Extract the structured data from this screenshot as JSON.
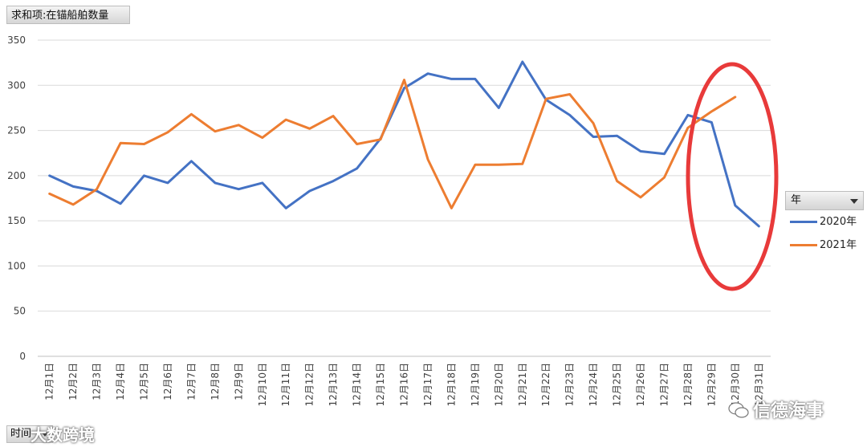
{
  "field_button": "求和项:在锚船舶数量",
  "legend": {
    "header": "年",
    "items": [
      {
        "label": "2020年",
        "color": "#4472C4"
      },
      {
        "label": "2021年",
        "color": "#ED7D31"
      }
    ]
  },
  "time_button": "时间",
  "watermark_left": "大数跨境",
  "watermark_right": "信德海事",
  "highlight_color": "#E83A3A",
  "chart_data": {
    "type": "line",
    "categories": [
      "12月1日",
      "12月2日",
      "12月3日",
      "12月4日",
      "12月5日",
      "12月6日",
      "12月7日",
      "12月8日",
      "12月9日",
      "12月10日",
      "12月11日",
      "12月12日",
      "12月13日",
      "12月14日",
      "12月15日",
      "12月16日",
      "12月17日",
      "12月18日",
      "12月19日",
      "12月20日",
      "12月21日",
      "12月22日",
      "12月23日",
      "12月24日",
      "12月25日",
      "12月26日",
      "12月27日",
      "12月28日",
      "12月29日",
      "12月30日",
      "12月31日"
    ],
    "series": [
      {
        "name": "2020年",
        "color": "#4472C4",
        "values": [
          200,
          188,
          183,
          169,
          200,
          192,
          216,
          192,
          185,
          192,
          164,
          183,
          194,
          208,
          241,
          297,
          313,
          307,
          307,
          275,
          326,
          284,
          267,
          243,
          244,
          227,
          224,
          267,
          259,
          167,
          144
        ]
      },
      {
        "name": "2021年",
        "color": "#ED7D31",
        "values": [
          180,
          168,
          185,
          236,
          235,
          248,
          268,
          249,
          256,
          242,
          262,
          252,
          266,
          235,
          240,
          306,
          218,
          164,
          212,
          212,
          213,
          285,
          290,
          258,
          194,
          176,
          198,
          253,
          271,
          287,
          null
        ]
      }
    ],
    "ylim": [
      0,
      350
    ],
    "yticks": [
      0,
      50,
      100,
      150,
      200,
      250,
      300,
      350
    ],
    "grid": true,
    "legend_position": "right"
  }
}
